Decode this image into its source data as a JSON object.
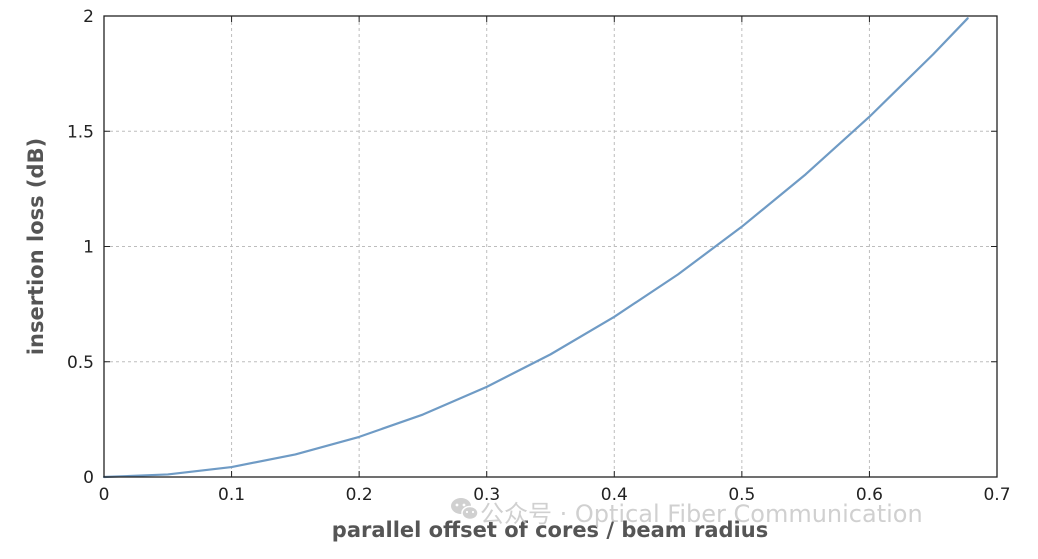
{
  "chart_data": {
    "type": "line",
    "title": "",
    "xlabel": "parallel offset of cores / beam radius",
    "ylabel": "insertion loss (dB)",
    "xlim": [
      0,
      0.7
    ],
    "ylim": [
      0,
      2
    ],
    "xticks": [
      "0",
      "0.1",
      "0.2",
      "0.3",
      "0.4",
      "0.5",
      "0.6",
      "0.7"
    ],
    "yticks": [
      "0",
      "0.5",
      "1",
      "1.5",
      "2"
    ],
    "grid": true,
    "legend": "none",
    "series": [
      {
        "color": "#6f9bc5",
        "x": [
          0,
          0.05,
          0.1,
          0.15,
          0.2,
          0.25,
          0.3,
          0.35,
          0.4,
          0.45,
          0.5,
          0.55,
          0.6,
          0.65,
          0.677
        ],
        "y": [
          0,
          0.011,
          0.043,
          0.098,
          0.174,
          0.271,
          0.391,
          0.532,
          0.695,
          0.879,
          1.086,
          1.313,
          1.563,
          1.834,
          1.99
        ]
      }
    ]
  },
  "watermark": {
    "icon": "wechat-icon",
    "text": "公众号 · Optical Fiber Communication"
  }
}
